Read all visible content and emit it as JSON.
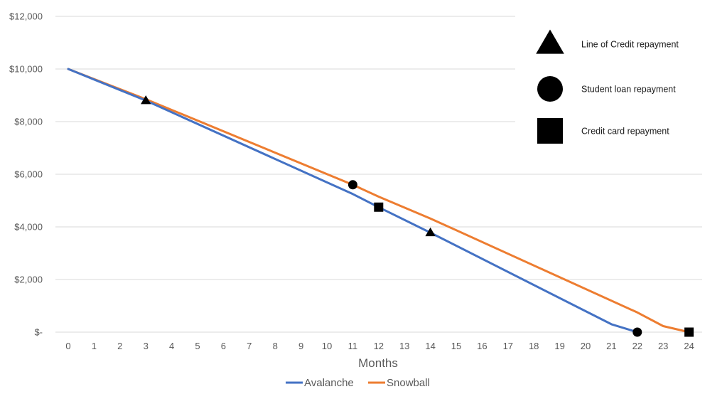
{
  "chart_data": {
    "type": "line",
    "xlabel": "Months",
    "ylabel": "",
    "x_ticks": [
      "0",
      "1",
      "2",
      "3",
      "4",
      "5",
      "6",
      "7",
      "8",
      "9",
      "10",
      "11",
      "12",
      "13",
      "14",
      "15",
      "16",
      "17",
      "18",
      "19",
      "20",
      "21",
      "22",
      "23",
      "24"
    ],
    "y_ticks": [
      "$12,000",
      "$10,000",
      "$8,000",
      "$6,000",
      "$4,000",
      "$2,000",
      "$-"
    ],
    "y_tick_values": [
      12000,
      10000,
      8000,
      6000,
      4000,
      2000,
      0
    ],
    "ylim": [
      0,
      12000
    ],
    "grid": true,
    "legend_position": "bottom",
    "series": [
      {
        "name": "Avalanche",
        "color": "#4472C4",
        "x": [
          0,
          3,
          11,
          12,
          14,
          21,
          22
        ],
        "y": [
          10000,
          8800,
          5250,
          4750,
          3780,
          300,
          0
        ]
      },
      {
        "name": "Snowball",
        "color": "#ED7D31",
        "x": [
          0,
          3,
          11,
          12,
          14,
          22,
          23,
          24
        ],
        "y": [
          10000,
          8850,
          5600,
          5150,
          4320,
          750,
          230,
          0
        ]
      }
    ],
    "markers": [
      {
        "type": "triangle",
        "x": 3,
        "y": 8800,
        "event": "Line of Credit repayment"
      },
      {
        "type": "circle",
        "x": 11,
        "y": 5600,
        "event": "Student loan repayment"
      },
      {
        "type": "square",
        "x": 12,
        "y": 4750,
        "event": "Credit card repayment"
      },
      {
        "type": "triangle",
        "x": 14,
        "y": 3780,
        "event": "Line of Credit repayment"
      },
      {
        "type": "circle",
        "x": 22,
        "y": 0,
        "event": "Student loan repayment"
      },
      {
        "type": "square",
        "x": 24,
        "y": 0,
        "event": "Credit card repayment"
      }
    ],
    "marker_key": [
      {
        "type": "triangle",
        "label": "Line of Credit repayment"
      },
      {
        "type": "circle",
        "label": "Student loan repayment"
      },
      {
        "type": "square",
        "label": "Credit card repayment"
      }
    ],
    "marker_key_position": "top-right"
  },
  "colors": {
    "grid": "#d9d9d9",
    "text": "#595959",
    "marker": "#000000"
  }
}
